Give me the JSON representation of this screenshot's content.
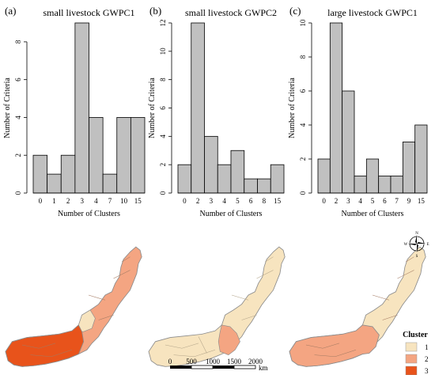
{
  "chart_data": [
    {
      "type": "bar",
      "panel_label": "(a)",
      "title": "small livestock GWPC1",
      "xlabel": "Number of Clusters",
      "ylabel": "Number of Criteria",
      "categories": [
        "0",
        "1",
        "2",
        "3",
        "4",
        "7",
        "10",
        "15"
      ],
      "values": [
        2,
        1,
        2,
        9,
        4,
        1,
        4,
        4
      ],
      "yticks": [
        0,
        2,
        4,
        6,
        8
      ],
      "ylim": [
        0,
        9
      ],
      "grid": false
    },
    {
      "type": "bar",
      "panel_label": "(b)",
      "title": "small livestock GWPC2",
      "xlabel": "Number of Clusters",
      "ylabel": "Number of Criteria",
      "categories": [
        "0",
        "2",
        "3",
        "4",
        "5",
        "6",
        "8",
        "15"
      ],
      "values": [
        2,
        12,
        4,
        2,
        3,
        1,
        1,
        2
      ],
      "yticks": [
        0,
        2,
        4,
        6,
        8,
        10,
        12
      ],
      "ylim": [
        0,
        12
      ],
      "grid": false
    },
    {
      "type": "bar",
      "panel_label": "(c)",
      "title": "large livestock GWPC1",
      "xlabel": "Number of Clusters",
      "ylabel": "Number of Criteria",
      "categories": [
        "0",
        "2",
        "3",
        "4",
        "5",
        "6",
        "7",
        "9",
        "15"
      ],
      "values": [
        2,
        10,
        6,
        1,
        2,
        1,
        1,
        3,
        4
      ],
      "yticks": [
        0,
        2,
        4,
        6,
        8,
        10
      ],
      "ylim": [
        0,
        10
      ],
      "grid": false
    }
  ],
  "maps": {
    "legend": {
      "title": "Cluster",
      "items": [
        {
          "label": "1",
          "color": "#f7e4bf"
        },
        {
          "label": "2",
          "color": "#f4a582"
        },
        {
          "label": "3",
          "color": "#e8531b"
        }
      ]
    },
    "scale_bar": {
      "ticks": [
        "0",
        "500",
        "1000",
        "1500",
        "2000"
      ],
      "unit": "km"
    },
    "compass": {
      "n": "N",
      "e": "E",
      "s": "S",
      "w": "W"
    },
    "map_icons": [
      "region-map-a",
      "region-map-b",
      "region-map-c"
    ]
  },
  "colors": {
    "bar_fill": "#c0c0c0",
    "bar_stroke": "#000000",
    "outline": "#8c8c8c"
  }
}
